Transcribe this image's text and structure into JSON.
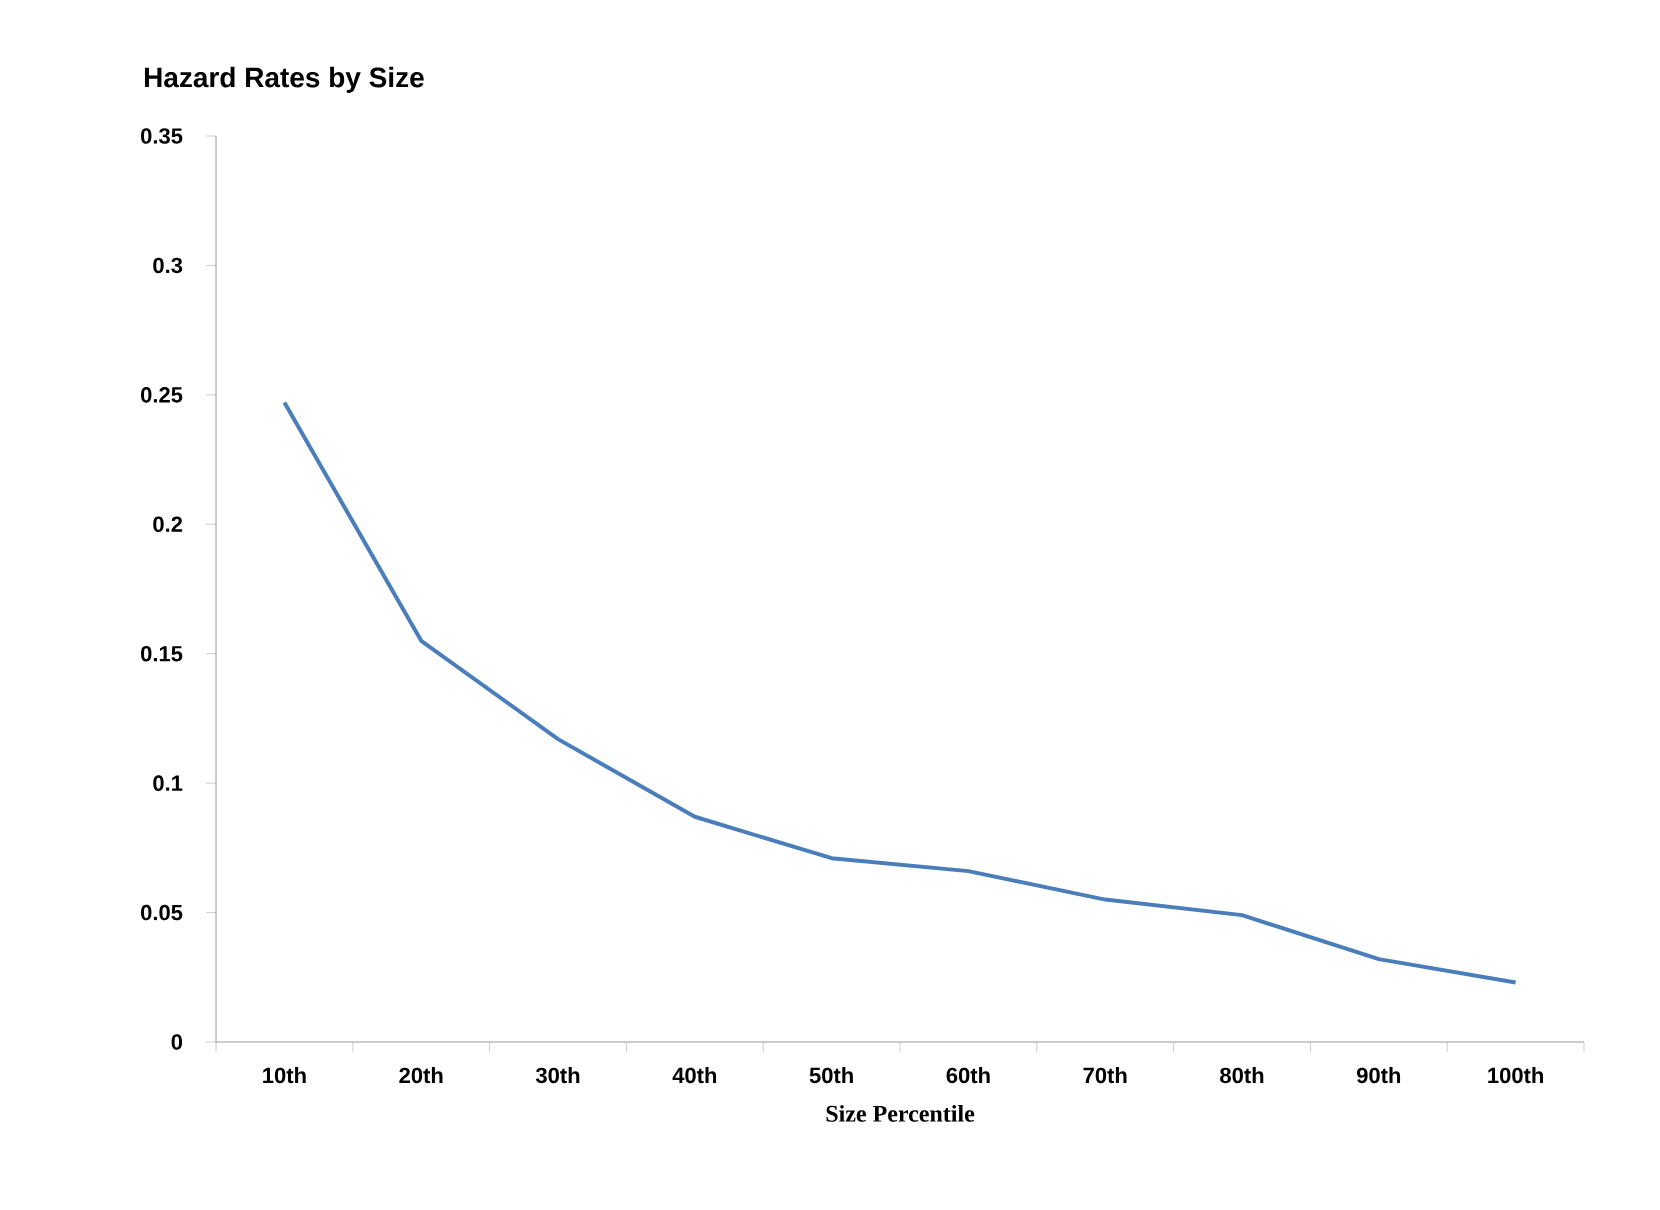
{
  "chart_data": {
    "type": "line",
    "title": "Hazard Rates by Size",
    "xlabel": "Size Percentile",
    "categories": [
      "10th",
      "20th",
      "30th",
      "40th",
      "50th",
      "60th",
      "70th",
      "80th",
      "90th",
      "100th"
    ],
    "series": [
      {
        "color": "#4a7ebb",
        "values": [
          0.247,
          0.155,
          0.117,
          0.087,
          0.071,
          0.066,
          0.055,
          0.049,
          0.032,
          0.023
        ]
      }
    ],
    "ylim": [
      0,
      0.35
    ],
    "yticks": [
      0,
      0.05,
      0.1,
      0.15,
      0.2,
      0.25,
      0.3,
      0.35
    ],
    "grid": false,
    "marker": "none",
    "line_style": "solid"
  }
}
